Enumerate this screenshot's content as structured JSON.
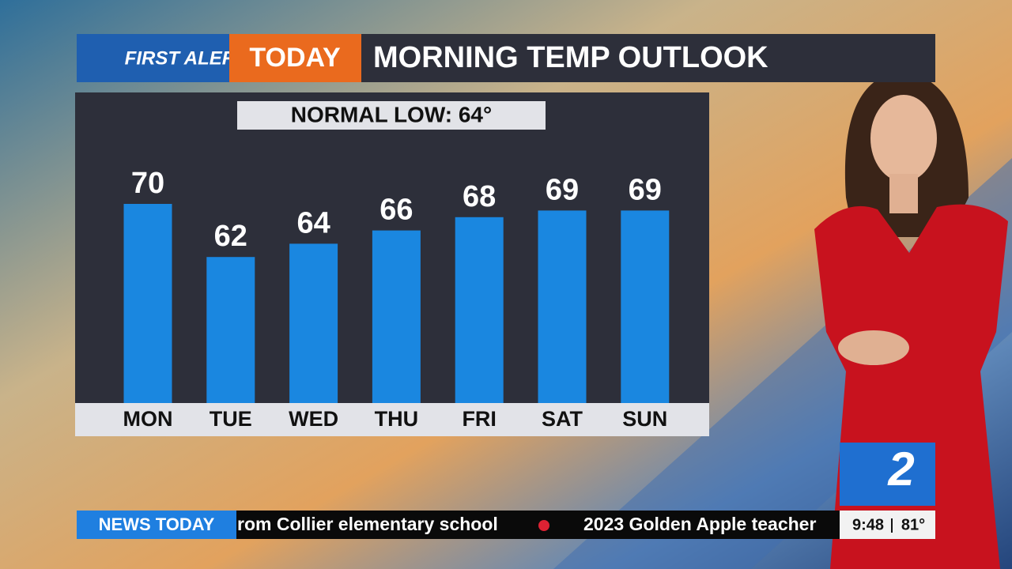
{
  "header": {
    "logo": "FIRST ALERT",
    "tag": "TODAY"
  },
  "chart_data": {
    "type": "bar",
    "title": "MORNING TEMP OUTLOOK",
    "subtitle": "NORMAL LOW: 64°",
    "categories": [
      "MON",
      "TUE",
      "WED",
      "THU",
      "FRI",
      "SAT",
      "SUN"
    ],
    "values": [
      70,
      62,
      64,
      66,
      68,
      69,
      69
    ],
    "color": "#1a87e0",
    "ylim": [
      40,
      75
    ]
  },
  "ticker": {
    "label": "NEWS TODAY",
    "items": [
      "rom Collier elementary school",
      "2023 Golden Apple teacher"
    ],
    "time": "9:48",
    "temp": "81°"
  }
}
